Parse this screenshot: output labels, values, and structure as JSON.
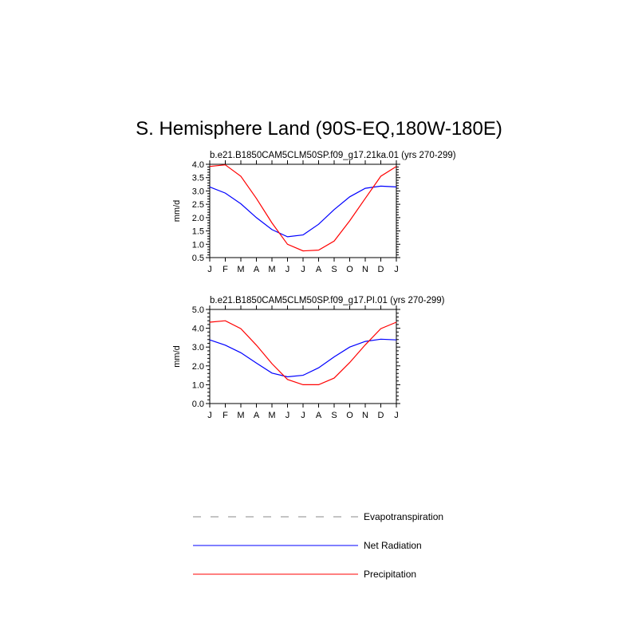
{
  "page_title": "S. Hemisphere Land (90S-EQ,180W-180E)",
  "legend": [
    {
      "label": "Evapotranspiration",
      "color": "#888888",
      "style": "dashed"
    },
    {
      "label": "Net Radiation",
      "color": "#0000ff",
      "style": "solid"
    },
    {
      "label": "Precipitation",
      "color": "#ff0000",
      "style": "solid"
    }
  ],
  "chart_data": [
    {
      "type": "line",
      "title": "b.e21.B1850CAM5CLM50SP.f09_g17.21ka.01 (yrs 270-299)",
      "ylabel": "mm/d",
      "xlabel": "",
      "categories": [
        "J",
        "F",
        "M",
        "A",
        "M",
        "J",
        "J",
        "A",
        "S",
        "O",
        "N",
        "D",
        "J"
      ],
      "ylim": [
        0.5,
        4.0
      ],
      "yticks": [
        0.5,
        1.0,
        1.5,
        2.0,
        2.5,
        3.0,
        3.5,
        4.0
      ],
      "ytick_labels": [
        "0.5",
        "1.0",
        "1.5",
        "2.0",
        "2.5",
        "3.0",
        "3.5",
        "4.0"
      ],
      "series": [
        {
          "name": "Net Radiation",
          "color": "#0000ff",
          "values": [
            3.15,
            2.92,
            2.52,
            2.0,
            1.55,
            1.28,
            1.35,
            1.75,
            2.3,
            2.78,
            3.1,
            3.18,
            3.15
          ]
        },
        {
          "name": "Precipitation",
          "color": "#ff0000",
          "values": [
            3.92,
            3.98,
            3.55,
            2.72,
            1.8,
            1.0,
            0.75,
            0.78,
            1.12,
            1.88,
            2.72,
            3.55,
            3.92
          ]
        }
      ]
    },
    {
      "type": "line",
      "title": "b.e21.B1850CAM5CLM50SP.f09_g17.PI.01 (yrs 270-299)",
      "ylabel": "mm/d",
      "xlabel": "",
      "categories": [
        "J",
        "F",
        "M",
        "A",
        "M",
        "J",
        "J",
        "A",
        "S",
        "O",
        "N",
        "D",
        "J"
      ],
      "ylim": [
        0.0,
        5.0
      ],
      "yticks": [
        0.0,
        1.0,
        2.0,
        3.0,
        4.0,
        5.0
      ],
      "ytick_labels": [
        "0.0",
        "1.0",
        "2.0",
        "3.0",
        "4.0",
        "5.0"
      ],
      "series": [
        {
          "name": "Net Radiation",
          "color": "#0000ff",
          "values": [
            3.38,
            3.1,
            2.7,
            2.15,
            1.62,
            1.42,
            1.5,
            1.9,
            2.48,
            3.0,
            3.3,
            3.42,
            3.38
          ]
        },
        {
          "name": "Precipitation",
          "color": "#ff0000",
          "values": [
            4.32,
            4.4,
            3.98,
            3.1,
            2.12,
            1.28,
            1.0,
            1.0,
            1.35,
            2.18,
            3.12,
            3.98,
            4.32
          ]
        }
      ]
    }
  ]
}
